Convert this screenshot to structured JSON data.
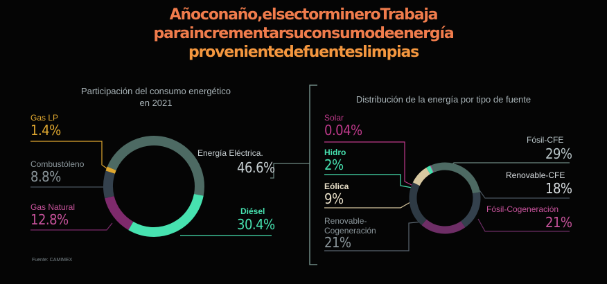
{
  "title": {
    "line1": "Añoconaño,elsectormineroTrabaja",
    "line2": "paraincrementarsuconsumodeenergía",
    "line3": "provenientedefuenteslimpias"
  },
  "source": "Fuente: CAMIMEX",
  "chart_data": [
    {
      "type": "pie",
      "title": "Participación del consumo energético",
      "subtitle": "en 2021",
      "slices": [
        {
          "label": "Energía Eléctrica.",
          "value": 46.6,
          "display": "46.6%",
          "color": "#4d6a63"
        },
        {
          "label": "Diésel",
          "value": 30.4,
          "display": "30.4%",
          "color": "#47e2b0"
        },
        {
          "label": "Gas Natural",
          "value": 12.8,
          "display": "12.8%",
          "color": "#7e2a6c"
        },
        {
          "label": "Combustóleno",
          "value": 8.8,
          "display": "8.8%",
          "color": "#34414d"
        },
        {
          "label": "Gas LP",
          "value": 1.4,
          "display": "1.4%",
          "color": "#e0a830"
        }
      ]
    },
    {
      "type": "pie",
      "title": "Distribución de la energía por tipo de fuente",
      "slices": [
        {
          "label": "Fósil-CFE",
          "value": 29,
          "display": "29%",
          "color": "#4d6a63"
        },
        {
          "label": "Renovable-CFE",
          "value": 18,
          "display": "18%",
          "color": "#34414d"
        },
        {
          "label": "Fósil-Cogeneración",
          "value": 21,
          "display": "21%",
          "color": "#6e2e66"
        },
        {
          "label": "Renovable-Cogeneración",
          "value": 21,
          "display": "21%",
          "color": "#2e3a44"
        },
        {
          "label": "Eólica",
          "value": 9,
          "display": "9%",
          "color": "#d8c8a0"
        },
        {
          "label": "Hidro",
          "value": 2,
          "display": "2%",
          "color": "#47e2b0"
        },
        {
          "label": "Solar",
          "value": 0.04,
          "display": "0.04%",
          "color": "#c03a8c"
        }
      ]
    }
  ]
}
